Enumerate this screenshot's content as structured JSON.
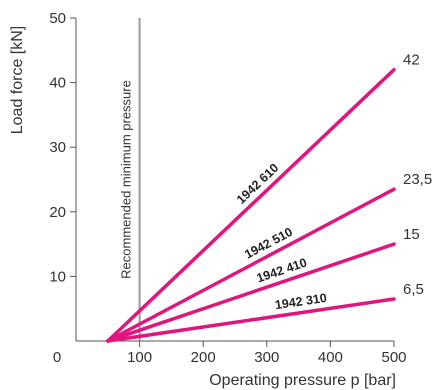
{
  "chart_data": {
    "type": "line",
    "title": "",
    "xlabel": "Operating pressure p [bar]",
    "ylabel": "Load force [kN]",
    "xlim": [
      0,
      500
    ],
    "ylim": [
      0,
      50
    ],
    "x_ticks": [
      0,
      100,
      200,
      300,
      400,
      500
    ],
    "y_ticks": [
      10,
      20,
      30,
      40,
      50
    ],
    "grid": false,
    "line_color": "#e2147d",
    "reference_line": {
      "x": 100,
      "label": "Recommended minimum pressure",
      "color": "#999999"
    },
    "series": [
      {
        "name": "1942 610",
        "x": [
          50,
          500
        ],
        "values": [
          0,
          42
        ],
        "end_label": "42"
      },
      {
        "name": "1942 510",
        "x": [
          50,
          500
        ],
        "values": [
          0,
          23.5
        ],
        "end_label": "23,5"
      },
      {
        "name": "1942 410",
        "x": [
          50,
          500
        ],
        "values": [
          0,
          15
        ],
        "end_label": "15"
      },
      {
        "name": "1942 310",
        "x": [
          50,
          500
        ],
        "values": [
          0,
          6.5
        ],
        "end_label": "6,5"
      }
    ]
  }
}
